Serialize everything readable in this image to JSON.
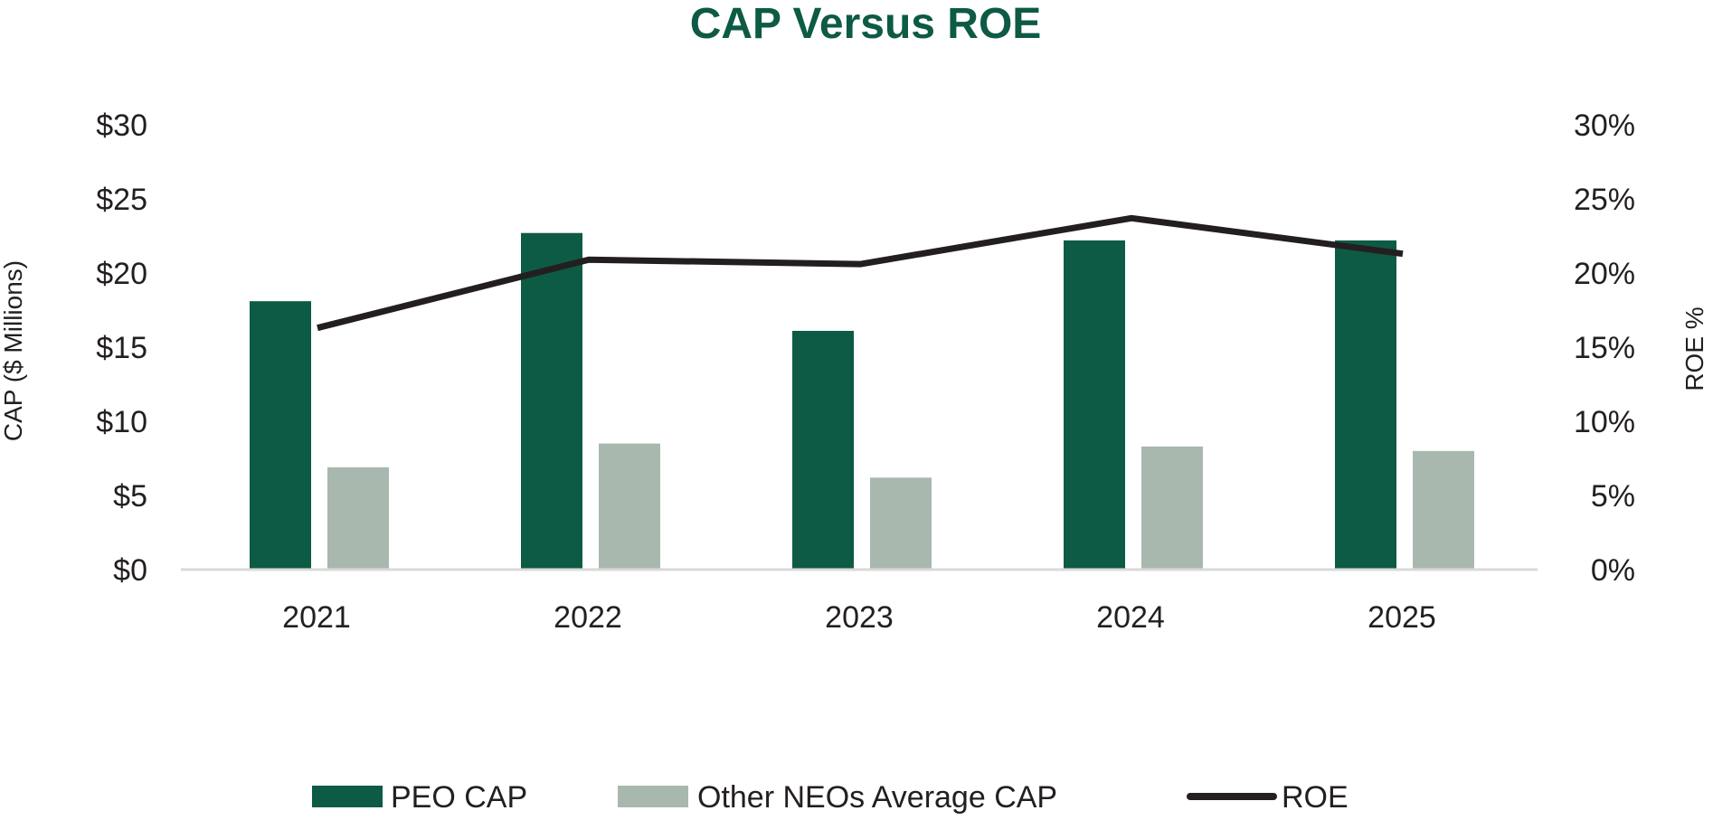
{
  "chart_data": {
    "type": "bar",
    "title": "CAP Versus ROE",
    "categories": [
      "2021",
      "2022",
      "2023",
      "2024",
      "2025"
    ],
    "series": [
      {
        "name": "PEO CAP",
        "kind": "bar",
        "axis": "left",
        "color": "#0d5a45",
        "values": [
          18.1,
          22.7,
          16.1,
          22.2,
          22.2
        ]
      },
      {
        "name": "Other NEOs Average CAP",
        "kind": "bar",
        "axis": "left",
        "color": "#a9b8ae",
        "values": [
          6.9,
          8.5,
          6.2,
          8.3,
          8.0
        ]
      },
      {
        "name": "ROE",
        "kind": "line",
        "axis": "right",
        "color": "#231f20",
        "values": [
          16.3,
          20.9,
          20.6,
          23.7,
          21.3
        ]
      }
    ],
    "ylabel": "CAP ($ Millions)",
    "y2label": "ROE %",
    "ylim": [
      0,
      30
    ],
    "y2lim": [
      0,
      30
    ],
    "yticks": [
      "$0",
      "$5",
      "$10",
      "$15",
      "$20",
      "$25",
      "$30"
    ],
    "y2ticks": [
      "0%",
      "5%",
      "10%",
      "15%",
      "20%",
      "25%",
      "30%"
    ],
    "grid": false,
    "legend_position": "bottom"
  }
}
